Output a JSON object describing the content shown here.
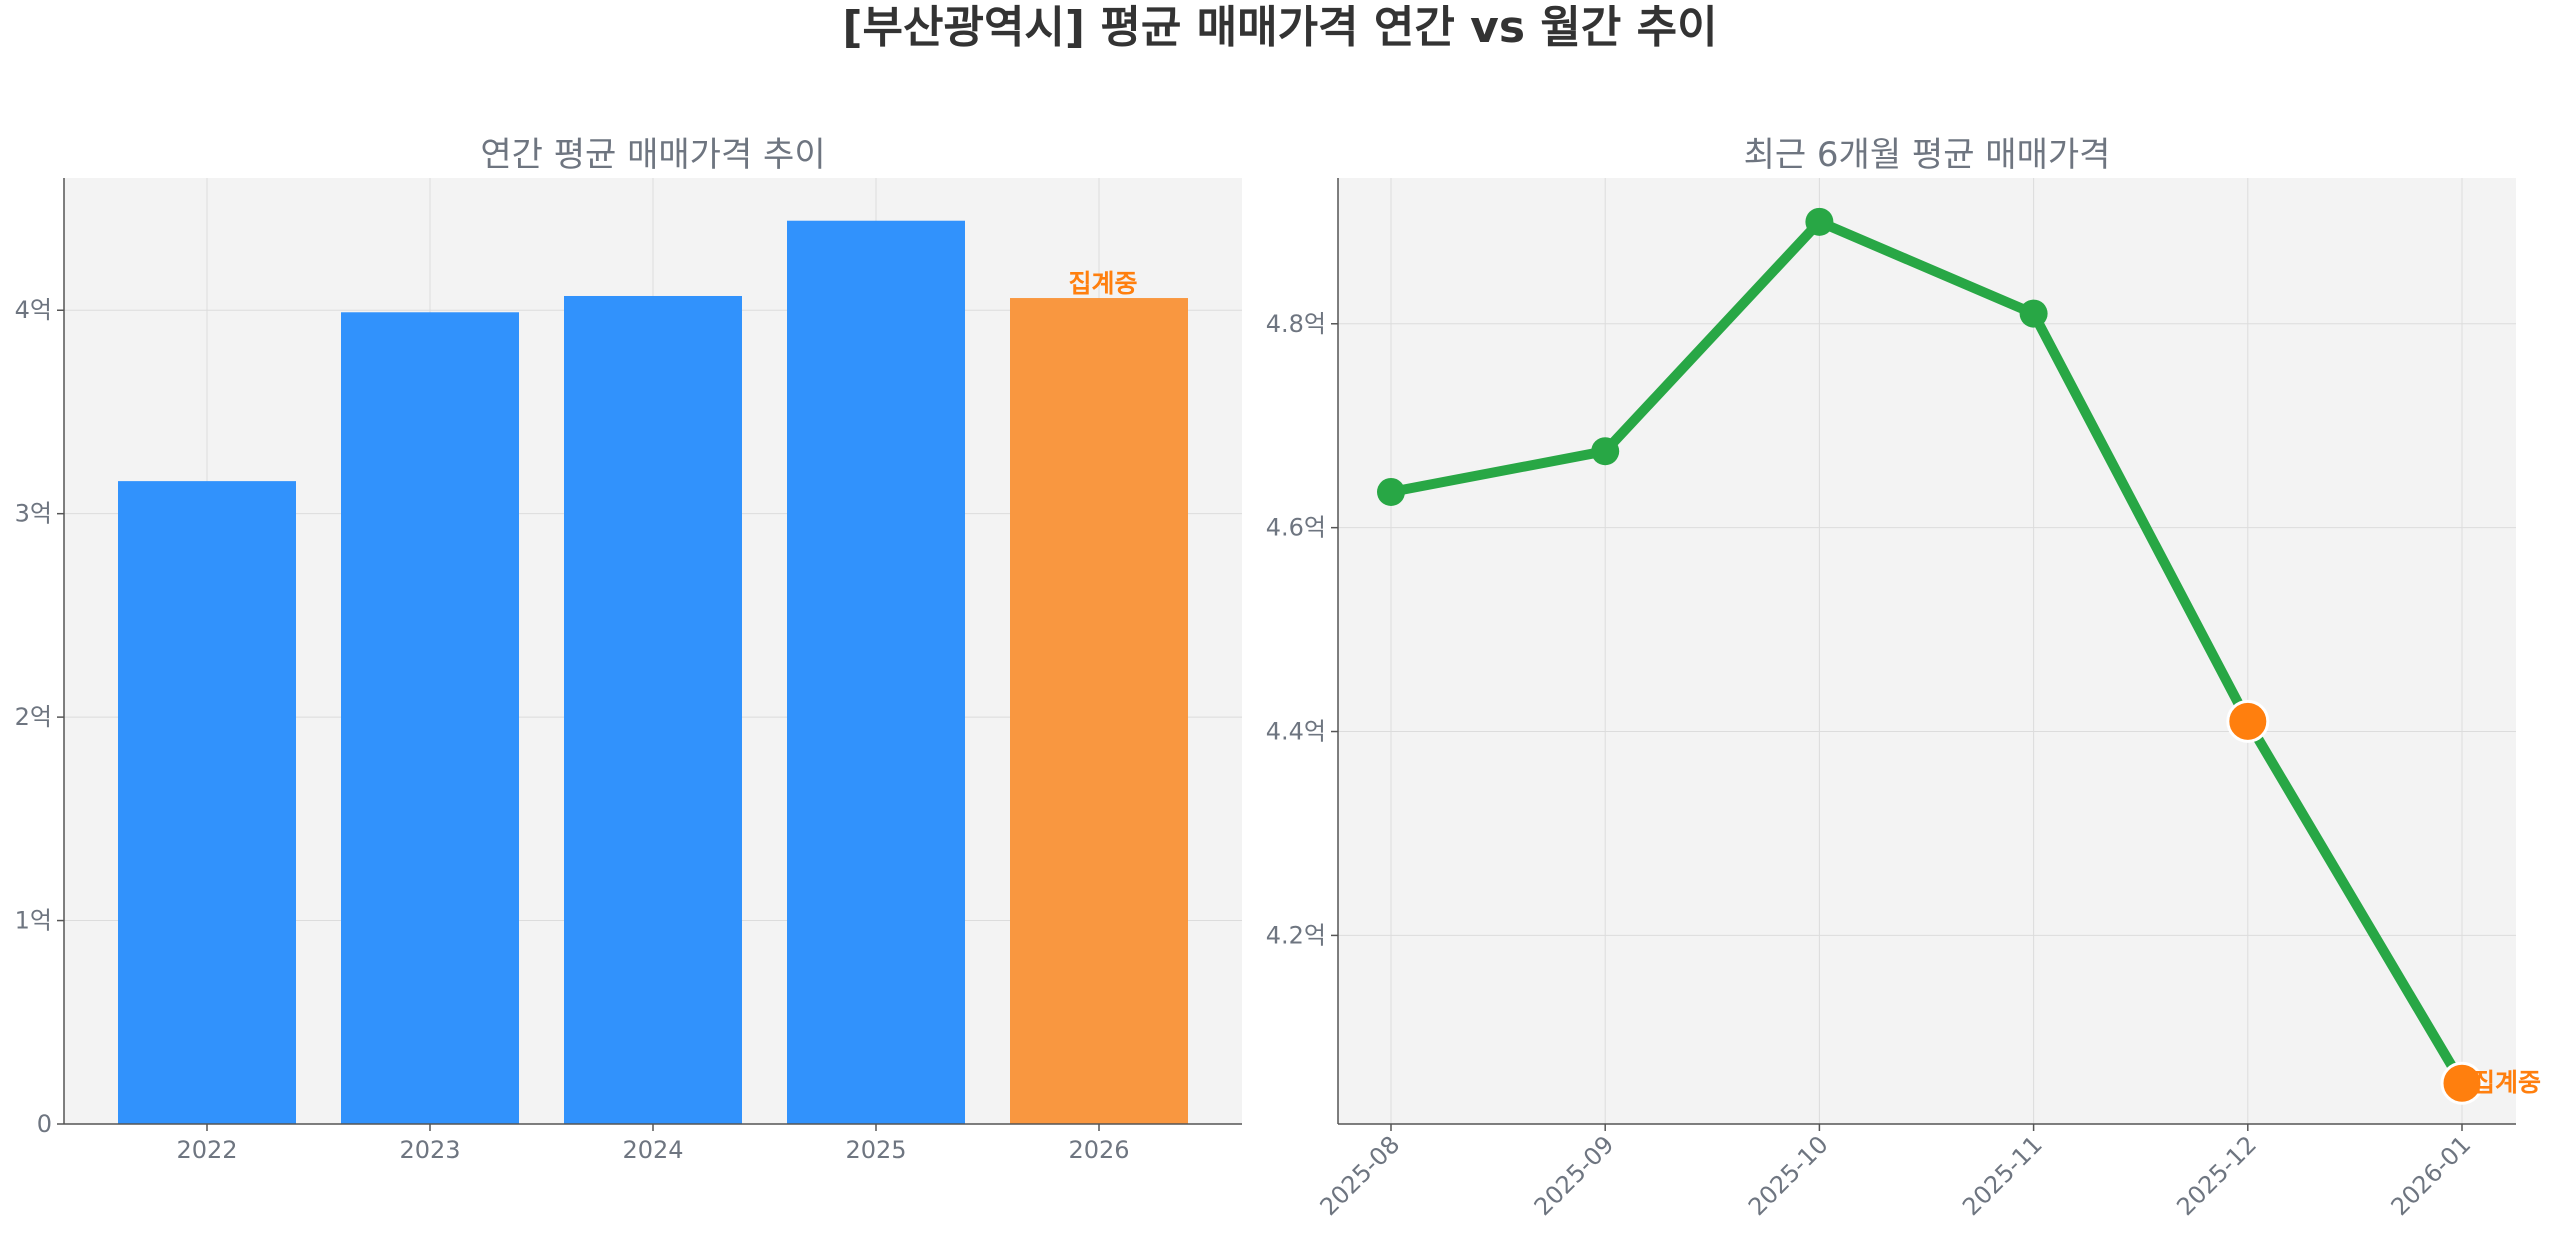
{
  "suptitle": "[부산광역시] 평균 매매가격 연간 vs 월간 추이",
  "colors": {
    "bar": "#3192fc",
    "bar_partial": "#f99740",
    "line": "#28a745",
    "marker_partial": "#ff7f0e",
    "partial_label": "#ff7f0e",
    "panel_bg": "#f3f3f3"
  },
  "chart_data": [
    {
      "type": "bar",
      "title": "연간 평균 매매가격 추이",
      "categories": [
        "2022",
        "2023",
        "2024",
        "2025",
        "2026"
      ],
      "values": [
        3.16,
        3.99,
        4.07,
        4.44,
        4.06
      ],
      "partial": [
        false,
        false,
        false,
        false,
        true
      ],
      "partial_label": "집계중",
      "ylim": [
        0,
        4.65
      ],
      "yticks": [
        0,
        1,
        2,
        3,
        4
      ],
      "ytick_labels": [
        "0",
        "1억",
        "2억",
        "3억",
        "4억"
      ],
      "grid": true
    },
    {
      "type": "line",
      "title": "최근 6개월 평균 매매가격",
      "categories": [
        "2025-08",
        "2025-09",
        "2025-10",
        "2025-11",
        "2025-12",
        "2026-01"
      ],
      "values": [
        4.635,
        4.675,
        4.9,
        4.81,
        4.41,
        4.055
      ],
      "partial": [
        false,
        false,
        false,
        false,
        true,
        true
      ],
      "partial_label": "집계중",
      "ylim": [
        4.015,
        4.943
      ],
      "yticks": [
        4.2,
        4.4,
        4.6,
        4.8
      ],
      "ytick_labels": [
        "4.2억",
        "4.4억",
        "4.6억",
        "4.8억"
      ],
      "grid": true
    }
  ]
}
